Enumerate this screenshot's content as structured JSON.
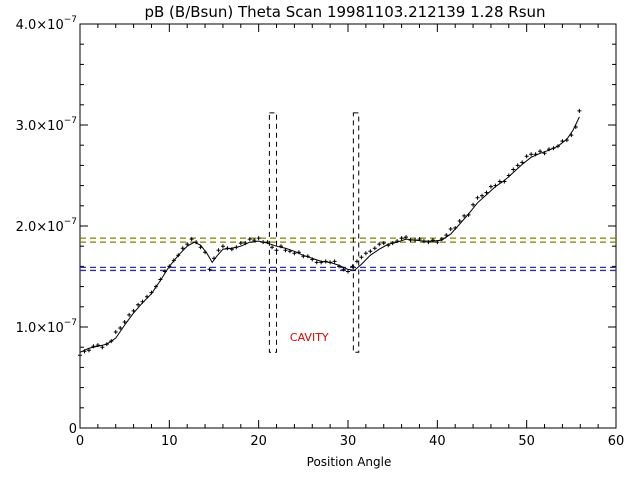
{
  "chart_data": {
    "type": "scatter",
    "title": "pB (B/Bsun) Theta Scan 19981103.212139 1.28 Rsun",
    "xlabel": "Position Angle",
    "ylabel": "",
    "xlim": [
      0,
      60
    ],
    "ylim": [
      0,
      4e-07
    ],
    "x_ticks": [
      "0",
      "10",
      "20",
      "30",
      "40",
      "50",
      "60"
    ],
    "y_ticks": [
      {
        "value": 0,
        "mantissa": "0",
        "exponent": ""
      },
      {
        "value": 1e-07,
        "mantissa": "1.0×10",
        "exponent": "−7"
      },
      {
        "value": 2e-07,
        "mantissa": "2.0×10",
        "exponent": "−7"
      },
      {
        "value": 3e-07,
        "mantissa": "3.0×10",
        "exponent": "−7"
      },
      {
        "value": 4e-07,
        "mantissa": "4.0×10",
        "exponent": "−7"
      }
    ],
    "grid": false,
    "legend": "none",
    "series": [
      {
        "kind": "points",
        "color": "#000000",
        "x": [
          0.0,
          0.5,
          1.0,
          1.5,
          2.0,
          2.5,
          3.0,
          3.5,
          4.0,
          4.5,
          5.0,
          5.5,
          6.0,
          6.5,
          7.0,
          7.5,
          8.0,
          8.5,
          9.0,
          9.5,
          10.0,
          10.5,
          11.0,
          11.5,
          12.0,
          12.5,
          13.0,
          13.5,
          14.0,
          14.5,
          15.0,
          15.5,
          16.0,
          16.5,
          17.0,
          17.5,
          18.0,
          18.5,
          19.0,
          19.5,
          20.0,
          20.5,
          21.0,
          21.5,
          22.0,
          22.5,
          23.0,
          23.5,
          24.0,
          24.5,
          25.0,
          25.5,
          26.0,
          26.5,
          27.0,
          27.5,
          28.0,
          28.5,
          29.0,
          29.5,
          30.0,
          30.5,
          31.0,
          31.5,
          32.0,
          32.5,
          33.0,
          33.5,
          34.0,
          34.5,
          35.0,
          35.5,
          36.0,
          36.5,
          37.0,
          37.5,
          38.0,
          38.5,
          39.0,
          39.5,
          40.0,
          40.5,
          41.0,
          41.5,
          42.0,
          42.5,
          43.0,
          43.5,
          44.0,
          44.5,
          45.0,
          45.5,
          46.0,
          46.5,
          47.0,
          47.5,
          48.0,
          48.5,
          49.0,
          49.5,
          50.0,
          50.5,
          51.0,
          51.5,
          52.0,
          52.5,
          53.0,
          53.5,
          54.0,
          54.5,
          55.0,
          55.5,
          55.9
        ],
        "y": [
          7.2e-08,
          7.6e-08,
          7.7e-08,
          8.1e-08,
          8.2e-08,
          8e-08,
          8.3e-08,
          8.6e-08,
          9.5e-08,
          9.9e-08,
          1.05e-07,
          1.12e-07,
          1.16e-07,
          1.22e-07,
          1.25e-07,
          1.3e-07,
          1.34e-07,
          1.4e-07,
          1.47e-07,
          1.55e-07,
          1.6e-07,
          1.66e-07,
          1.71e-07,
          1.78e-07,
          1.82e-07,
          1.87e-07,
          1.84e-07,
          1.79e-07,
          1.74e-07,
          1.57e-07,
          1.68e-07,
          1.76e-07,
          1.8e-07,
          1.78e-07,
          1.77e-07,
          1.79e-07,
          1.83e-07,
          1.83e-07,
          1.87e-07,
          1.86e-07,
          1.88e-07,
          1.84e-07,
          1.84e-07,
          1.79e-07,
          1.76e-07,
          1.8e-07,
          1.76e-07,
          1.75e-07,
          1.73e-07,
          1.74e-07,
          1.7e-07,
          1.7e-07,
          1.67e-07,
          1.64e-07,
          1.64e-07,
          1.65e-07,
          1.64e-07,
          1.65e-07,
          1.6e-07,
          1.57e-07,
          1.55e-07,
          1.6e-07,
          1.65e-07,
          1.69e-07,
          1.73e-07,
          1.75e-07,
          1.78e-07,
          1.82e-07,
          1.83e-07,
          1.81e-07,
          1.83e-07,
          1.85e-07,
          1.88e-07,
          1.89e-07,
          1.86e-07,
          1.86e-07,
          1.87e-07,
          1.85e-07,
          1.84e-07,
          1.86e-07,
          1.84e-07,
          1.87e-07,
          1.91e-07,
          1.97e-07,
          1.98e-07,
          2.05e-07,
          2.1e-07,
          2.11e-07,
          2.21e-07,
          2.28e-07,
          2.3e-07,
          2.33e-07,
          2.39e-07,
          2.4e-07,
          2.44e-07,
          2.44e-07,
          2.5e-07,
          2.56e-07,
          2.6e-07,
          2.63e-07,
          2.69e-07,
          2.71e-07,
          2.71e-07,
          2.74e-07,
          2.72e-07,
          2.76e-07,
          2.77e-07,
          2.79e-07,
          2.84e-07,
          2.85e-07,
          2.9e-07,
          2.98e-07,
          3.14e-07
        ]
      },
      {
        "kind": "line",
        "color": "#000000",
        "x": [
          0,
          1,
          2,
          3,
          4,
          5,
          6,
          7,
          8,
          9,
          10,
          11,
          12,
          12.8,
          13.5,
          14.2,
          14.8,
          15.3,
          16,
          17,
          18,
          19,
          20,
          21,
          22,
          23,
          24,
          25,
          26,
          27,
          28,
          29,
          30,
          30.7,
          31.5,
          32.5,
          33.5,
          34.5,
          35.5,
          36.5,
          37.5,
          38.5,
          39.5,
          40.5,
          41.5,
          42.5,
          43.5,
          44.5,
          45.5,
          46.5,
          47.5,
          48.5,
          49.5,
          50.5,
          51.5,
          52.5,
          53.5,
          54.5,
          55.2,
          55.9
        ],
        "y": [
          7.5e-08,
          7.9e-08,
          8.1e-08,
          8.3e-08,
          8.9e-08,
          1.02e-07,
          1.14e-07,
          1.24e-07,
          1.33e-07,
          1.46e-07,
          1.6e-07,
          1.71e-07,
          1.8e-07,
          1.84e-07,
          1.81e-07,
          1.73e-07,
          1.64e-07,
          1.7e-07,
          1.77e-07,
          1.78e-07,
          1.8e-07,
          1.84e-07,
          1.85e-07,
          1.83e-07,
          1.8e-07,
          1.78e-07,
          1.75e-07,
          1.71e-07,
          1.68e-07,
          1.65e-07,
          1.64e-07,
          1.61e-07,
          1.57e-07,
          1.56e-07,
          1.62e-07,
          1.71e-07,
          1.77e-07,
          1.82e-07,
          1.84e-07,
          1.87e-07,
          1.86e-07,
          1.85e-07,
          1.85e-07,
          1.86e-07,
          1.92e-07,
          2.02e-07,
          2.12e-07,
          2.23e-07,
          2.31e-07,
          2.39e-07,
          2.45e-07,
          2.53e-07,
          2.61e-07,
          2.68e-07,
          2.72e-07,
          2.75e-07,
          2.79e-07,
          2.86e-07,
          2.95e-07,
          3.08e-07
        ]
      }
    ],
    "reference_lines": [
      {
        "y": 1.88e-07,
        "color": "#808000",
        "style": "dashed"
      },
      {
        "y": 1.84e-07,
        "color": "#808000",
        "style": "dashed"
      },
      {
        "y": 1.59e-07,
        "color": "#3030a0",
        "style": "dashed"
      },
      {
        "y": 1.56e-07,
        "color": "#3030a0",
        "style": "dashed"
      }
    ],
    "boxes": [
      {
        "x0": 21.2,
        "x1": 22.0,
        "y0": 7.5e-08,
        "y1": 3.12e-07,
        "style": "dashed"
      },
      {
        "x0": 30.6,
        "x1": 31.2,
        "y0": 7.5e-08,
        "y1": 3.12e-07,
        "style": "dashed"
      }
    ],
    "annotations": [
      {
        "text": "CAVITY",
        "x": 23.5,
        "y": 8.6e-08,
        "color": "#e00000"
      }
    ]
  }
}
